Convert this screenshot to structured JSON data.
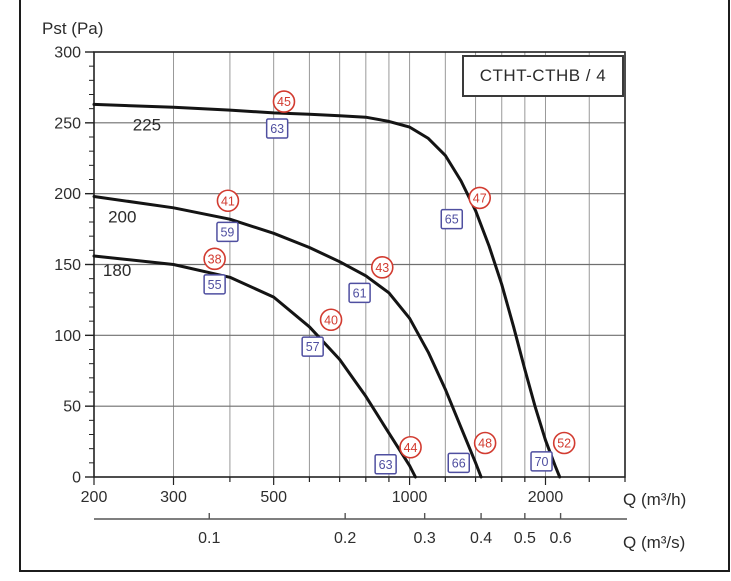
{
  "chart_data": {
    "type": "line",
    "title": "CTHT-CTHB / 4",
    "grid": true,
    "legend": "none",
    "x_axis": {
      "label": "Q (m³/h)",
      "scale": "log",
      "min": 200,
      "max": 3000,
      "labeled_ticks": [
        200,
        300,
        500,
        1000,
        2000
      ],
      "gridlines": [
        200,
        300,
        400,
        500,
        600,
        700,
        800,
        900,
        1000,
        1200,
        1400,
        1600,
        1800,
        2000,
        2500,
        3000
      ]
    },
    "x_axis_secondary": {
      "label": "Q (m³/s)",
      "ticks": [
        0.1,
        0.2,
        0.3,
        0.4,
        0.5,
        0.6
      ],
      "m3s_to_m3h": 3600
    },
    "y_axis": {
      "label": "Pst (Pa)",
      "min": 0,
      "max": 300,
      "tick_step": 50,
      "minor_tick_step": 10
    },
    "series": [
      {
        "name": "225",
        "label_at": [
          262,
          249
        ],
        "points": [
          [
            200,
            263
          ],
          [
            300,
            261
          ],
          [
            400,
            259
          ],
          [
            500,
            257
          ],
          [
            600,
            256
          ],
          [
            700,
            255
          ],
          [
            800,
            254
          ],
          [
            900,
            251
          ],
          [
            1000,
            247
          ],
          [
            1100,
            239
          ],
          [
            1200,
            227
          ],
          [
            1300,
            209
          ],
          [
            1400,
            188
          ],
          [
            1500,
            163
          ],
          [
            1600,
            136
          ],
          [
            1700,
            106
          ],
          [
            1800,
            76
          ],
          [
            1900,
            49
          ],
          [
            2000,
            26
          ],
          [
            2100,
            8
          ],
          [
            2150,
            0
          ]
        ],
        "markers_circle": [
          {
            "value": 45,
            "q": 527,
            "pst": 265
          },
          {
            "value": 47,
            "q": 1430,
            "pst": 197
          },
          {
            "value": 52,
            "q": 2200,
            "pst": 24
          }
        ],
        "markers_square": [
          {
            "value": 63,
            "q": 509,
            "pst": 246
          },
          {
            "value": 65,
            "q": 1240,
            "pst": 182
          },
          {
            "value": 70,
            "q": 1960,
            "pst": 11
          }
        ]
      },
      {
        "name": "200",
        "label_at": [
          231,
          184
        ],
        "points": [
          [
            200,
            198
          ],
          [
            300,
            190
          ],
          [
            400,
            182
          ],
          [
            500,
            172
          ],
          [
            600,
            162
          ],
          [
            700,
            152
          ],
          [
            800,
            142
          ],
          [
            900,
            130
          ],
          [
            1000,
            112
          ],
          [
            1100,
            88
          ],
          [
            1200,
            62
          ],
          [
            1300,
            35
          ],
          [
            1400,
            10
          ],
          [
            1440,
            0
          ]
        ],
        "markers_circle": [
          {
            "value": 41,
            "q": 396,
            "pst": 195
          },
          {
            "value": 43,
            "q": 870,
            "pst": 148
          },
          {
            "value": 48,
            "q": 1470,
            "pst": 24
          }
        ],
        "markers_square": [
          {
            "value": 59,
            "q": 395,
            "pst": 173
          },
          {
            "value": 61,
            "q": 775,
            "pst": 130
          },
          {
            "value": 66,
            "q": 1285,
            "pst": 10
          }
        ]
      },
      {
        "name": "180",
        "label_at": [
          225,
          146
        ],
        "points": [
          [
            200,
            156
          ],
          [
            300,
            150
          ],
          [
            400,
            141
          ],
          [
            500,
            127
          ],
          [
            600,
            106
          ],
          [
            700,
            83
          ],
          [
            800,
            57
          ],
          [
            900,
            31
          ],
          [
            1000,
            8
          ],
          [
            1030,
            0
          ]
        ],
        "markers_circle": [
          {
            "value": 38,
            "q": 370,
            "pst": 154
          },
          {
            "value": 40,
            "q": 670,
            "pst": 111
          },
          {
            "value": 44,
            "q": 1005,
            "pst": 21
          }
        ],
        "markers_square": [
          {
            "value": 55,
            "q": 370,
            "pst": 136
          },
          {
            "value": 57,
            "q": 610,
            "pst": 92
          },
          {
            "value": 63,
            "q": 885,
            "pst": 9
          }
        ]
      }
    ],
    "colors": {
      "curve": "#141414",
      "circle_marker": "#d23b30",
      "square_marker": "#4f4fa0",
      "grid_vertical": "#999999",
      "grid_horizontal": "#6f6f6f",
      "plot_border": "#222222",
      "text": "#2e2e2e"
    }
  }
}
